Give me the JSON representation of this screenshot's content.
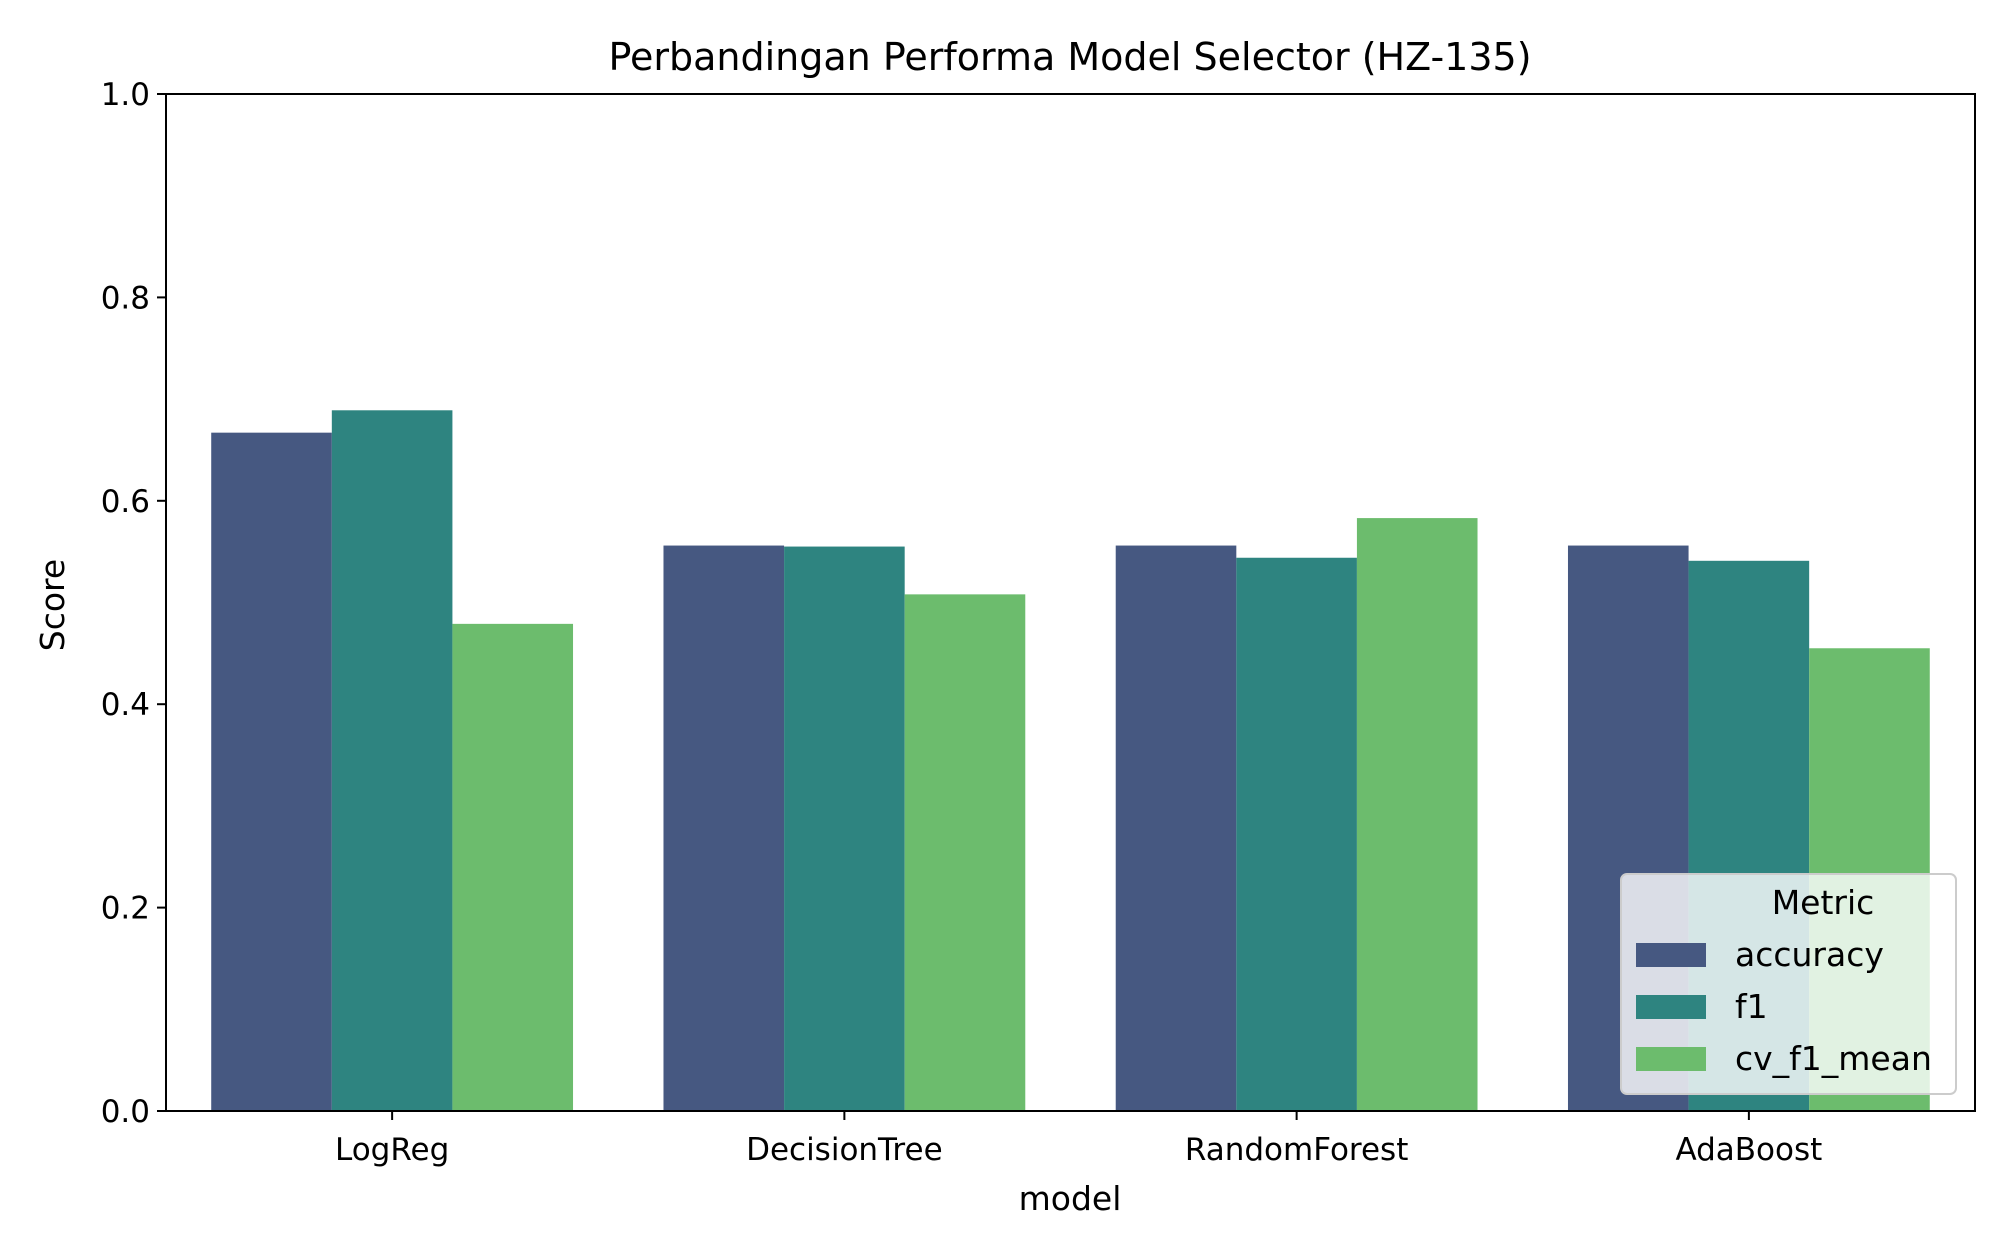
{
  "chart_data": {
    "type": "bar",
    "title": "Perbandingan Performa Model Selector (HZ-135)",
    "xlabel": "model",
    "ylabel": "Score",
    "ylim": [
      0,
      1.0
    ],
    "yticks": [
      "0.0",
      "0.2",
      "0.4",
      "0.6",
      "0.8",
      "1.0"
    ],
    "categories": [
      "LogReg",
      "DecisionTree",
      "RandomForest",
      "AdaBoost"
    ],
    "series": [
      {
        "name": "accuracy",
        "color": "#465881",
        "values": [
          0.667,
          0.556,
          0.556,
          0.556
        ]
      },
      {
        "name": "f1",
        "color": "#2e8480",
        "values": [
          0.689,
          0.555,
          0.544,
          0.541
        ]
      },
      {
        "name": "cv_f1_mean",
        "color": "#6cbc6d",
        "values": [
          0.479,
          0.508,
          0.583,
          0.455
        ]
      }
    ],
    "legend": {
      "title": "Metric",
      "position": "bottom-right"
    },
    "grid": false
  }
}
